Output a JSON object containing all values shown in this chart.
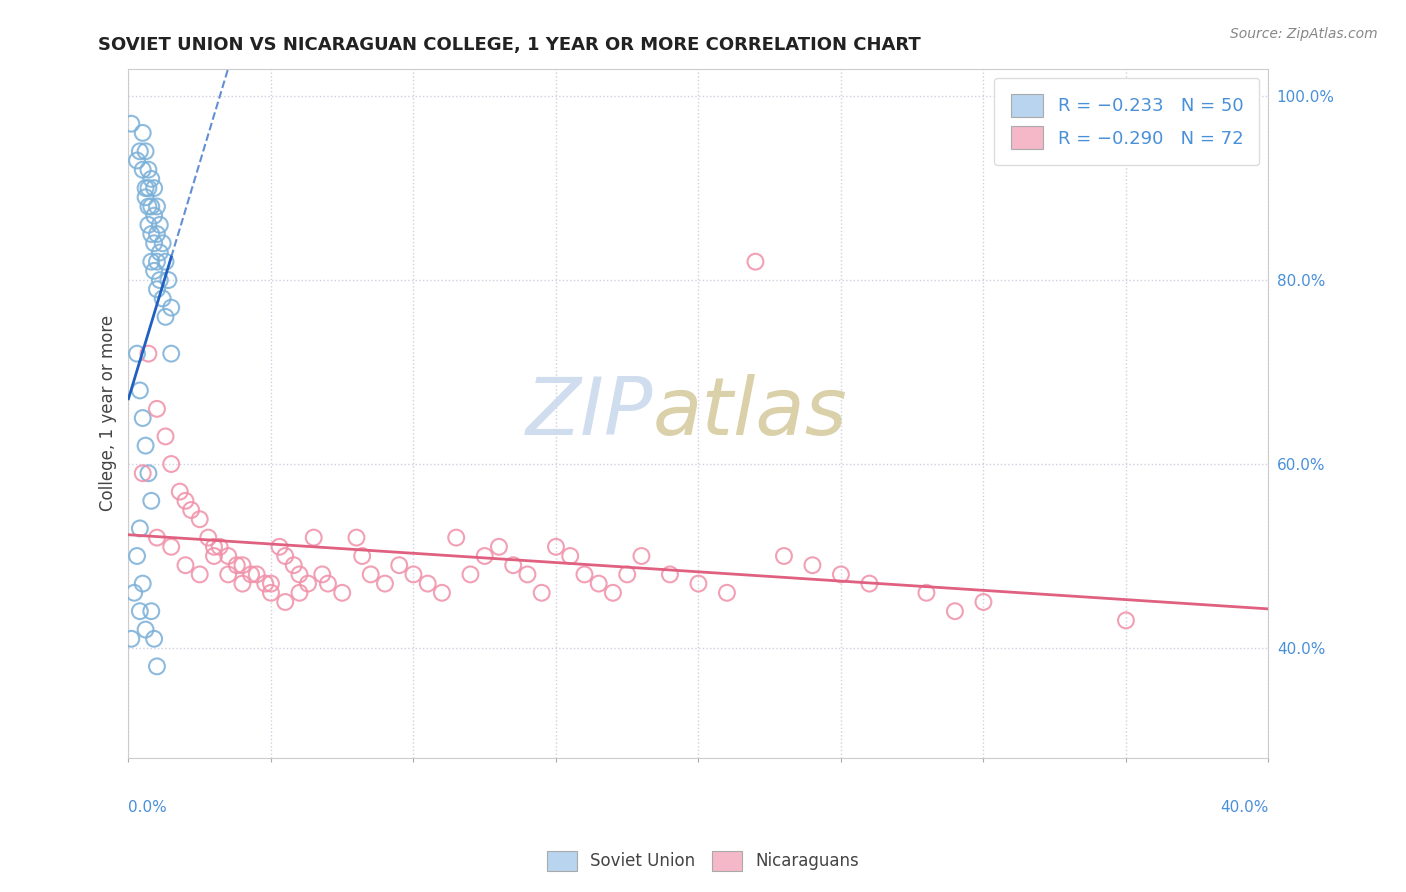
{
  "title": "SOVIET UNION VS NICARAGUAN COLLEGE, 1 YEAR OR MORE CORRELATION CHART",
  "source_text": "Source: ZipAtlas.com",
  "ylabel": "College, 1 year or more",
  "xlim": [
    0.0,
    0.4
  ],
  "ylim": [
    0.28,
    1.03
  ],
  "yticks": [
    0.4,
    0.6,
    0.8,
    1.0
  ],
  "xticks": [
    0.0,
    0.05,
    0.1,
    0.15,
    0.2,
    0.25,
    0.3,
    0.35,
    0.4
  ],
  "legend_entries": [
    {
      "label": "R = −0.233   N = 50",
      "color": "#b8d4ee"
    },
    {
      "label": "R = −0.290   N = 72",
      "color": "#f4b8c8"
    }
  ],
  "soviet_color": "#7ab0d8",
  "nicaraguan_color": "#f090a8",
  "soviet_line_color": "#2060c0",
  "nicaraguan_line_color": "#e06080",
  "background_color": "#ffffff",
  "grid_color": "#d0d0e0",
  "soviet_points": [
    [
      0.001,
      0.97
    ],
    [
      0.003,
      0.93
    ],
    [
      0.004,
      0.94
    ],
    [
      0.005,
      0.96
    ],
    [
      0.005,
      0.92
    ],
    [
      0.006,
      0.94
    ],
    [
      0.006,
      0.9
    ],
    [
      0.006,
      0.89
    ],
    [
      0.007,
      0.92
    ],
    [
      0.007,
      0.9
    ],
    [
      0.007,
      0.88
    ],
    [
      0.007,
      0.86
    ],
    [
      0.008,
      0.91
    ],
    [
      0.008,
      0.88
    ],
    [
      0.008,
      0.85
    ],
    [
      0.008,
      0.82
    ],
    [
      0.009,
      0.9
    ],
    [
      0.009,
      0.87
    ],
    [
      0.009,
      0.84
    ],
    [
      0.009,
      0.81
    ],
    [
      0.01,
      0.88
    ],
    [
      0.01,
      0.85
    ],
    [
      0.01,
      0.82
    ],
    [
      0.01,
      0.79
    ],
    [
      0.011,
      0.86
    ],
    [
      0.011,
      0.83
    ],
    [
      0.011,
      0.8
    ],
    [
      0.012,
      0.84
    ],
    [
      0.012,
      0.78
    ],
    [
      0.013,
      0.82
    ],
    [
      0.013,
      0.76
    ],
    [
      0.014,
      0.8
    ],
    [
      0.015,
      0.77
    ],
    [
      0.015,
      0.72
    ],
    [
      0.003,
      0.72
    ],
    [
      0.004,
      0.68
    ],
    [
      0.005,
      0.65
    ],
    [
      0.006,
      0.62
    ],
    [
      0.007,
      0.59
    ],
    [
      0.008,
      0.56
    ],
    [
      0.004,
      0.53
    ],
    [
      0.003,
      0.5
    ],
    [
      0.005,
      0.47
    ],
    [
      0.008,
      0.44
    ],
    [
      0.001,
      0.41
    ],
    [
      0.006,
      0.42
    ],
    [
      0.002,
      0.46
    ],
    [
      0.004,
      0.44
    ],
    [
      0.009,
      0.41
    ],
    [
      0.01,
      0.38
    ]
  ],
  "nicaraguan_points": [
    [
      0.005,
      0.59
    ],
    [
      0.007,
      0.72
    ],
    [
      0.01,
      0.66
    ],
    [
      0.013,
      0.63
    ],
    [
      0.015,
      0.6
    ],
    [
      0.018,
      0.57
    ],
    [
      0.02,
      0.56
    ],
    [
      0.022,
      0.55
    ],
    [
      0.025,
      0.54
    ],
    [
      0.028,
      0.52
    ],
    [
      0.03,
      0.51
    ],
    [
      0.032,
      0.51
    ],
    [
      0.035,
      0.5
    ],
    [
      0.038,
      0.49
    ],
    [
      0.04,
      0.49
    ],
    [
      0.043,
      0.48
    ],
    [
      0.045,
      0.48
    ],
    [
      0.048,
      0.47
    ],
    [
      0.05,
      0.47
    ],
    [
      0.053,
      0.51
    ],
    [
      0.055,
      0.5
    ],
    [
      0.058,
      0.49
    ],
    [
      0.06,
      0.48
    ],
    [
      0.063,
      0.47
    ],
    [
      0.065,
      0.52
    ],
    [
      0.068,
      0.48
    ],
    [
      0.07,
      0.47
    ],
    [
      0.075,
      0.46
    ],
    [
      0.08,
      0.52
    ],
    [
      0.082,
      0.5
    ],
    [
      0.085,
      0.48
    ],
    [
      0.09,
      0.47
    ],
    [
      0.095,
      0.49
    ],
    [
      0.1,
      0.48
    ],
    [
      0.105,
      0.47
    ],
    [
      0.11,
      0.46
    ],
    [
      0.115,
      0.52
    ],
    [
      0.12,
      0.48
    ],
    [
      0.125,
      0.5
    ],
    [
      0.13,
      0.51
    ],
    [
      0.135,
      0.49
    ],
    [
      0.14,
      0.48
    ],
    [
      0.145,
      0.46
    ],
    [
      0.15,
      0.51
    ],
    [
      0.155,
      0.5
    ],
    [
      0.16,
      0.48
    ],
    [
      0.165,
      0.47
    ],
    [
      0.17,
      0.46
    ],
    [
      0.175,
      0.48
    ],
    [
      0.18,
      0.5
    ],
    [
      0.19,
      0.48
    ],
    [
      0.2,
      0.47
    ],
    [
      0.21,
      0.46
    ],
    [
      0.01,
      0.52
    ],
    [
      0.015,
      0.51
    ],
    [
      0.02,
      0.49
    ],
    [
      0.025,
      0.48
    ],
    [
      0.03,
      0.5
    ],
    [
      0.035,
      0.48
    ],
    [
      0.04,
      0.47
    ],
    [
      0.05,
      0.46
    ],
    [
      0.055,
      0.45
    ],
    [
      0.06,
      0.46
    ],
    [
      0.22,
      0.82
    ],
    [
      0.23,
      0.5
    ],
    [
      0.24,
      0.49
    ],
    [
      0.25,
      0.48
    ],
    [
      0.26,
      0.47
    ],
    [
      0.28,
      0.46
    ],
    [
      0.3,
      0.45
    ],
    [
      0.35,
      0.43
    ],
    [
      0.29,
      0.44
    ]
  ]
}
